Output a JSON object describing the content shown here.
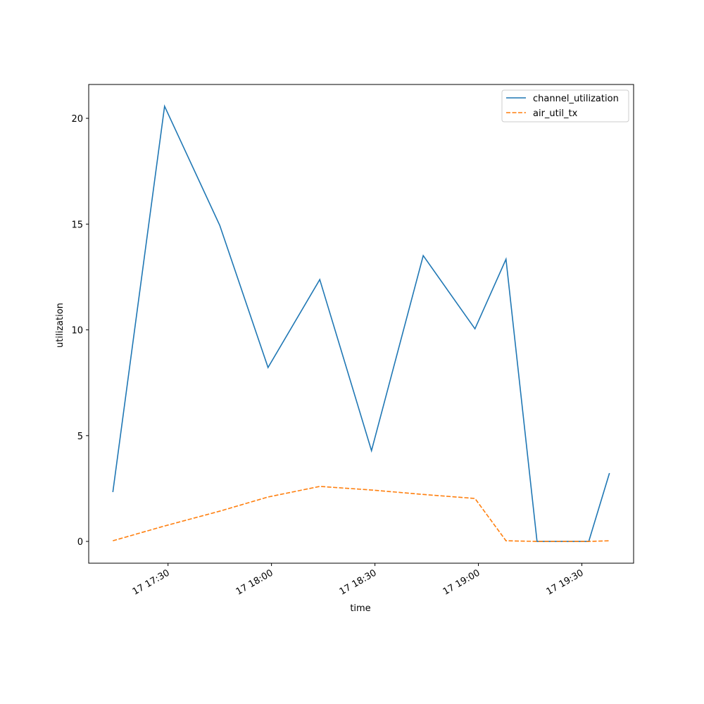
{
  "chart_data": {
    "type": "line",
    "x_label": "time",
    "y_label": "utilization",
    "x": [
      "17 17:14",
      "17 17:29",
      "17 17:45",
      "17 17:59",
      "17 18:14",
      "17 18:29",
      "17 18:44",
      "17 18:59",
      "17 19:08",
      "17 19:17",
      "17 19:32",
      "17 19:38"
    ],
    "series": [
      {
        "name": "channel_utilization",
        "color": "#1f77b4",
        "dash": "solid",
        "values": [
          2.33,
          20.57,
          14.94,
          8.22,
          12.38,
          4.29,
          13.51,
          10.05,
          13.34,
          0,
          0,
          3.23
        ]
      },
      {
        "name": "air_util_tx",
        "color": "#ff7f0e",
        "dash": "dashed",
        "values": [
          0.03,
          0.73,
          1.43,
          2.1,
          2.6,
          2.43,
          2.22,
          2.03,
          0.03,
          0,
          0,
          0.03
        ]
      }
    ],
    "xlim": [
      "17 17:07",
      "17 19:45"
    ],
    "xticks": [
      "17 17:30",
      "17 18:00",
      "17 18:30",
      "17 19:00",
      "17 19:30"
    ],
    "ylim": [
      -1.03,
      21.6
    ],
    "yticks": [
      0,
      5,
      10,
      15,
      20
    ],
    "legend": "upper right",
    "grid": false
  }
}
